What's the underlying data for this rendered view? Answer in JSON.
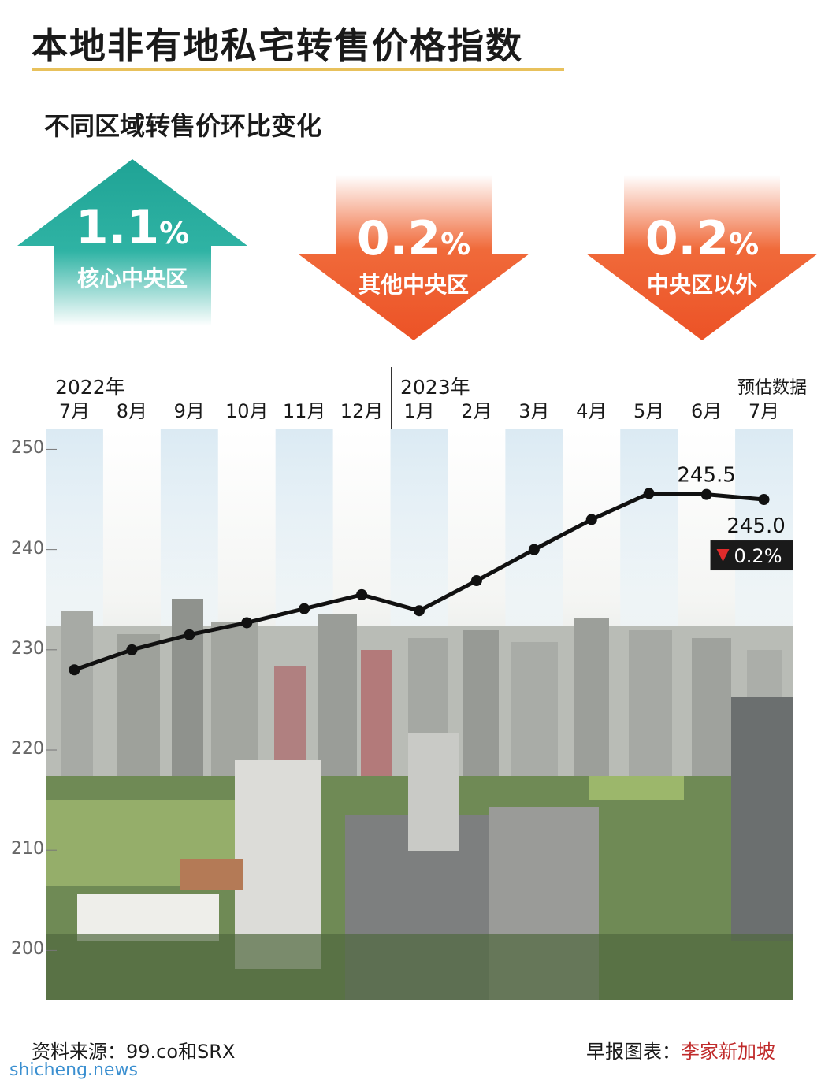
{
  "title": "本地非有地私宅转售价格指数",
  "subtitle": "不同区域转售价环比变化",
  "regions": [
    {
      "value": "1.1",
      "unit": "%",
      "label": "核心中央区",
      "direction": "up",
      "color": "#21a89a"
    },
    {
      "value": "0.2",
      "unit": "%",
      "label": "其他中央区",
      "direction": "down",
      "color": "#ef5a2c"
    },
    {
      "value": "0.2",
      "unit": "%",
      "label": "中央区以外",
      "direction": "down",
      "color": "#ef5a2c"
    }
  ],
  "axis": {
    "year_2022": "2022年",
    "year_2023": "2023年",
    "estimate_label": "预估数据",
    "months": [
      "7月",
      "8月",
      "9月",
      "10月",
      "11月",
      "12月",
      "1月",
      "2月",
      "3月",
      "4月",
      "5月",
      "6月",
      "7月"
    ],
    "y_ticks": [
      "250",
      "240",
      "230",
      "220",
      "210",
      "200"
    ]
  },
  "chart_data": {
    "type": "line",
    "x": [
      "2022-07",
      "2022-08",
      "2022-09",
      "2022-10",
      "2022-11",
      "2022-12",
      "2023-01",
      "2023-02",
      "2023-03",
      "2023-04",
      "2023-05",
      "2023-06",
      "2023-07"
    ],
    "values": [
      228.0,
      230.0,
      231.5,
      232.7,
      234.1,
      235.5,
      233.9,
      236.9,
      240.0,
      243.0,
      245.6,
      245.5,
      245.0
    ],
    "ylim": [
      195,
      252
    ],
    "annotations": {
      "june": "245.5",
      "july": "245.0",
      "change": "0.2%"
    },
    "line_color": "#111111",
    "grid": false
  },
  "footer": {
    "source": "资料来源：99.co和SRX",
    "credit": "早报图表：",
    "brand": "李家新加坡",
    "watermark": "shicheng.news"
  }
}
